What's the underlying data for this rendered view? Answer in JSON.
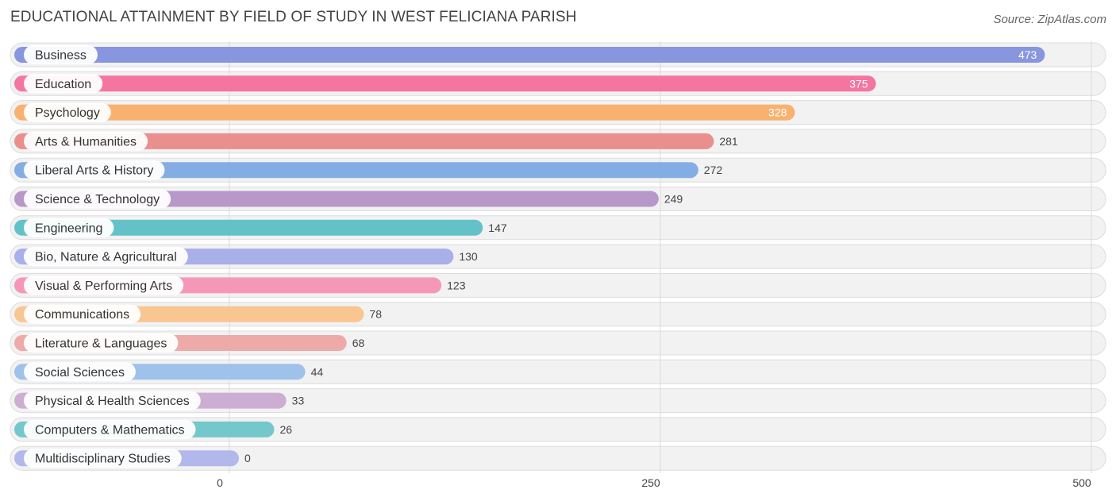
{
  "title": "EDUCATIONAL ATTAINMENT BY FIELD OF STUDY IN WEST FELICIANA PARISH",
  "source": "Source: ZipAtlas.com",
  "chart_data": {
    "type": "bar",
    "orientation": "horizontal",
    "categories": [
      "Business",
      "Education",
      "Psychology",
      "Arts & Humanities",
      "Liberal Arts & History",
      "Science & Technology",
      "Engineering",
      "Bio, Nature & Agricultural",
      "Visual & Performing Arts",
      "Communications",
      "Literature & Languages",
      "Social Sciences",
      "Physical & Health Sciences",
      "Computers & Mathematics",
      "Multidisciplinary Studies"
    ],
    "values": [
      473,
      375,
      328,
      281,
      272,
      249,
      147,
      130,
      123,
      78,
      68,
      44,
      33,
      26,
      0
    ],
    "colors": [
      "#8796df",
      "#f476a0",
      "#f9b170",
      "#e98f8e",
      "#84aee3",
      "#b798c9",
      "#63c2c8",
      "#a9afe8",
      "#f598b8",
      "#f9c591",
      "#eeaaa8",
      "#9fc2ea",
      "#cdaed3",
      "#74c8cb",
      "#b2b7ec"
    ],
    "xlim": [
      0,
      500
    ],
    "ticks": [
      0,
      250,
      500
    ],
    "grid": true
  }
}
